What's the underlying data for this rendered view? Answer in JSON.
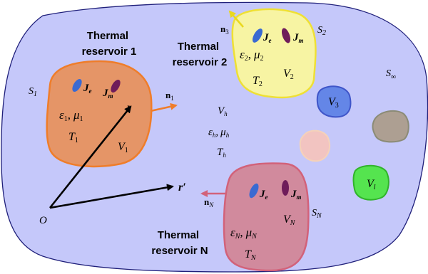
{
  "colors": {
    "host": "#c5c8fa",
    "host_stroke": "#1f1f7a",
    "r1_fill": "#e59567",
    "r1_stroke": "#ef7d2a",
    "r2_fill": "#f7f4a3",
    "r2_stroke": "#efe034",
    "rN_fill": "#d18a9d",
    "rN_stroke": "#d2627a",
    "v3_fill": "#6486e7",
    "v3_stroke": "#3f55c9",
    "grey_fill": "#ad9f92",
    "grey_stroke": "#8b8b76",
    "peach_fill": "#f2c4c1",
    "peach_stroke": "#f5d2b9",
    "vl_fill": "#55e44f",
    "vl_stroke": "#31b32b",
    "je": "#3a6ad2",
    "jm": "#6f1c5a",
    "arrow1": "#ef7d2a",
    "arrow2": "#ead81e",
    "arrowN": "#d2627a"
  },
  "reservoir1": {
    "title_line1": "Thermal",
    "title_line2": "reservoir 1",
    "surface": "S",
    "surface_sub": "1",
    "normal": "n",
    "normal_sub": "1",
    "je": "J",
    "je_sub": "e",
    "jm": "J",
    "jm_sub": "m",
    "eps": "ε",
    "eps_sub": "1",
    "comma": ",",
    "mu": "μ",
    "mu_sub": "1",
    "T": "T",
    "T_sub": "1",
    "V": "V",
    "V_sub": "1",
    "r": "r"
  },
  "reservoir2": {
    "title_line1": "Thermal",
    "title_line2": "reservoir 2",
    "surface": "S",
    "surface_sub": "2",
    "normal": "n",
    "normal_sub": "3",
    "je": "J",
    "je_sub": "e",
    "jm": "J",
    "jm_sub": "m",
    "eps": "ε",
    "eps_sub": "2",
    "comma": ",",
    "mu": "μ",
    "mu_sub": "2",
    "T": "T",
    "T_sub": "2",
    "V": "V",
    "V_sub": "2"
  },
  "reservoirN": {
    "title_line1": "Thermal",
    "title_line2": "reservoir N",
    "surface": "S",
    "surface_sub": "N",
    "normal": "n",
    "normal_sub": "N",
    "je": "J",
    "je_sub": "e",
    "jm": "J",
    "jm_sub": "m",
    "eps": "ε",
    "eps_sub": "N",
    "comma": ",",
    "mu": "μ",
    "mu_sub": "N",
    "T": "T",
    "T_sub": "N",
    "V": "V",
    "V_sub": "N"
  },
  "host": {
    "V": "V",
    "V_sub": "h",
    "eps": "ε",
    "eps_sub": "h",
    "comma": ",",
    "mu": "μ",
    "mu_sub": "h",
    "T": "T",
    "T_sub": "h",
    "S_inf": "S",
    "S_inf_sub": "∞"
  },
  "objects": {
    "v3": "V",
    "v3_sub": "3",
    "vl": "V",
    "vl_sub": "l"
  },
  "origin": {
    "O": "O",
    "r_prime": "r′"
  }
}
